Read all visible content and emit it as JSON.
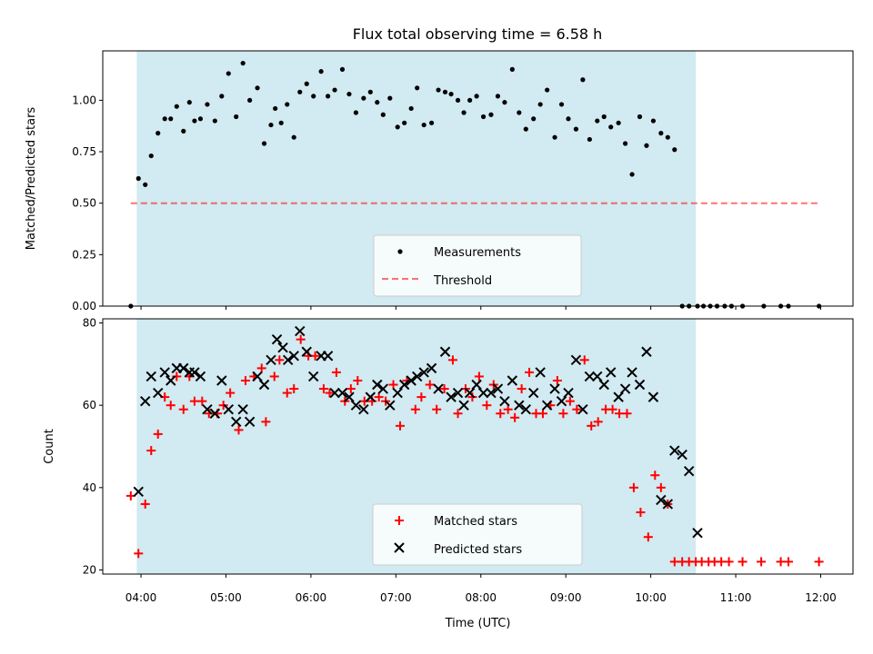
{
  "title": "Flux total observing time = 6.58 h",
  "colors": {
    "shade": "#add8e6",
    "measurement": "#000000",
    "threshold": "#ff0000",
    "matched": "#ff0000",
    "predicted": "#000000"
  },
  "chart_data": [
    {
      "type": "scatter",
      "ylabel": "Matched/Predicted stars",
      "ylim": [
        0,
        1.24
      ],
      "yticks": [
        0.0,
        0.25,
        0.5,
        0.75,
        1.0
      ],
      "ytick_labels": [
        "0.00",
        "0.25",
        "0.50",
        "0.75",
        "1.00"
      ],
      "shaded_span_hours": [
        3.95,
        10.53
      ],
      "threshold": {
        "name": "Threshold",
        "value": 0.5,
        "x_range_hours": [
          3.88,
          12.0
        ]
      },
      "legend": {
        "position": "lower-center",
        "entries": [
          "Measurements",
          "Threshold"
        ]
      },
      "series": [
        {
          "name": "Measurements",
          "x_hours": [
            3.88,
            3.97,
            4.05,
            4.12,
            4.2,
            4.28,
            4.35,
            4.42,
            4.5,
            4.57,
            4.63,
            4.7,
            4.78,
            4.87,
            4.95,
            5.03,
            5.12,
            5.2,
            5.28,
            5.37,
            5.45,
            5.53,
            5.58,
            5.65,
            5.72,
            5.8,
            5.87,
            5.95,
            6.03,
            6.12,
            6.2,
            6.28,
            6.37,
            6.45,
            6.53,
            6.62,
            6.7,
            6.78,
            6.85,
            6.93,
            7.02,
            7.1,
            7.18,
            7.25,
            7.33,
            7.42,
            7.5,
            7.58,
            7.65,
            7.73,
            7.8,
            7.87,
            7.95,
            8.03,
            8.12,
            8.2,
            8.28,
            8.37,
            8.45,
            8.53,
            8.62,
            8.7,
            8.78,
            8.87,
            8.95,
            9.03,
            9.12,
            9.2,
            9.28,
            9.37,
            9.45,
            9.53,
            9.62,
            9.7,
            9.78,
            9.87,
            9.95,
            10.03,
            10.12,
            10.2,
            10.28,
            10.37,
            10.45,
            10.55,
            10.62,
            10.7,
            10.78,
            10.87,
            10.95,
            11.08,
            11.33,
            11.53,
            11.62,
            11.98
          ],
          "y": [
            0.0,
            0.62,
            0.59,
            0.73,
            0.84,
            0.91,
            0.91,
            0.97,
            0.85,
            0.99,
            0.9,
            0.91,
            0.98,
            0.9,
            1.02,
            1.13,
            0.92,
            1.18,
            1.0,
            1.06,
            0.79,
            0.88,
            0.96,
            0.89,
            0.98,
            0.82,
            1.04,
            1.08,
            1.02,
            1.14,
            1.02,
            1.05,
            1.15,
            1.03,
            0.94,
            1.01,
            1.04,
            0.99,
            0.93,
            1.01,
            0.87,
            0.89,
            0.96,
            1.06,
            0.88,
            0.89,
            1.05,
            1.04,
            1.03,
            1.0,
            0.94,
            1.0,
            1.02,
            0.92,
            0.93,
            1.02,
            0.99,
            1.15,
            0.94,
            0.86,
            0.91,
            0.98,
            1.05,
            0.82,
            0.98,
            0.91,
            0.86,
            1.1,
            0.81,
            0.9,
            0.92,
            0.87,
            0.89,
            0.79,
            0.64,
            0.92,
            0.78,
            0.9,
            0.84,
            0.82,
            0.76,
            0.0,
            0.0,
            0.0,
            0.0,
            0.0,
            0.0,
            0.0,
            0.0,
            0.0,
            0.0,
            0.0,
            0.0,
            0.0
          ]
        }
      ]
    },
    {
      "type": "scatter",
      "ylabel": "Count",
      "xlabel": "Time (UTC)",
      "ylim": [
        19,
        81
      ],
      "yticks": [
        20,
        40,
        60,
        80
      ],
      "ytick_labels": [
        "20",
        "40",
        "60",
        "80"
      ],
      "xticks_hours": [
        4,
        5,
        6,
        7,
        8,
        9,
        10,
        11,
        12
      ],
      "xtick_labels": [
        "04:00",
        "05:00",
        "06:00",
        "07:00",
        "08:00",
        "09:00",
        "10:00",
        "11:00",
        "12:00"
      ],
      "xlim_hours": [
        3.55,
        12.38
      ],
      "shaded_span_hours": [
        3.95,
        10.53
      ],
      "legend": {
        "position": "lower-center",
        "entries": [
          "Matched stars",
          "Predicted stars"
        ]
      },
      "series": [
        {
          "name": "Matched stars",
          "x_hours": [
            3.88,
            3.97,
            4.05,
            4.12,
            4.2,
            4.28,
            4.35,
            4.42,
            4.5,
            4.57,
            4.63,
            4.7,
            4.78,
            4.87,
            4.95,
            5.03,
            5.12,
            5.2,
            5.28,
            5.37,
            5.45,
            5.53,
            5.58,
            5.65,
            5.72,
            5.8,
            5.87,
            5.95,
            6.03,
            6.12,
            6.2,
            6.28,
            6.37,
            6.45,
            6.53,
            6.62,
            6.7,
            6.78,
            6.85,
            6.93,
            7.02,
            7.1,
            7.18,
            7.25,
            7.33,
            7.42,
            7.5,
            7.58,
            7.65,
            7.73,
            7.8,
            7.87,
            7.95,
            8.03,
            8.12,
            8.2,
            8.28,
            8.37,
            8.45,
            8.53,
            8.62,
            8.7,
            8.78,
            8.87,
            8.95,
            9.03,
            9.12,
            9.2,
            9.28,
            9.37,
            9.45,
            9.53,
            9.62,
            9.7,
            9.78,
            9.87,
            9.95,
            10.03,
            10.12,
            10.2,
            10.28,
            10.37,
            10.45,
            10.55,
            10.62,
            10.7,
            10.78,
            10.87,
            10.95,
            11.08,
            11.33,
            11.53,
            11.62,
            11.98
          ],
          "y": [
            38,
            24,
            36,
            49,
            53,
            62,
            60,
            67,
            59,
            67,
            61,
            61,
            58,
            58,
            60,
            63,
            54,
            66,
            67,
            69,
            56,
            67,
            71,
            63,
            64,
            76,
            72,
            72,
            64,
            63,
            68,
            61,
            64,
            66,
            61,
            61,
            62,
            61,
            65,
            55,
            66,
            59,
            62,
            65,
            59,
            64,
            71,
            58,
            64,
            62,
            67,
            60,
            65,
            58,
            59,
            57,
            64,
            68,
            58,
            58,
            60,
            66,
            58,
            61,
            59,
            71,
            55,
            56,
            59,
            59,
            58,
            58,
            40,
            34,
            28,
            43,
            40,
            36,
            22,
            22,
            22,
            22,
            22,
            22,
            22,
            22,
            22,
            22,
            22,
            22,
            22,
            22,
            22,
            22
          ],
          "x_plus": [
            3.88,
            3.97,
            4.05,
            4.12,
            4.2,
            4.28,
            4.35,
            4.42,
            4.5,
            4.57,
            4.63,
            4.72,
            4.8,
            4.9,
            4.97,
            5.05,
            5.15,
            5.23,
            5.33,
            5.42,
            5.47,
            5.57,
            5.63,
            5.72,
            5.8,
            5.88,
            5.97,
            6.05,
            6.15,
            6.22,
            6.3,
            6.4,
            6.47,
            6.55,
            6.63,
            6.72,
            6.8,
            6.88,
            6.97,
            7.05,
            7.13,
            7.23,
            7.3,
            7.4,
            7.48,
            7.57,
            7.67,
            7.73,
            7.82,
            7.9,
            7.98,
            8.07,
            8.15,
            8.23,
            8.32,
            8.4,
            8.48,
            8.57,
            8.65,
            8.73,
            8.82,
            8.9,
            8.97,
            9.05,
            9.13,
            9.22,
            9.3,
            9.38,
            9.47,
            9.55,
            9.63,
            9.72,
            9.8,
            9.88,
            9.97,
            10.05,
            10.12,
            10.2,
            10.28,
            10.37,
            10.45,
            10.53,
            10.6,
            10.68,
            10.75,
            10.83,
            10.92,
            11.08,
            11.3,
            11.53,
            11.62,
            11.98
          ]
        },
        {
          "name": "Predicted stars",
          "x_hours": [
            3.97,
            4.05,
            4.12,
            4.2,
            4.28,
            4.35,
            4.42,
            4.5,
            4.57,
            4.63,
            4.7,
            4.78,
            4.87,
            4.95,
            5.03,
            5.12,
            5.2,
            5.28,
            5.37,
            5.45,
            5.53,
            5.6,
            5.67,
            5.73,
            5.8,
            5.87,
            5.95,
            6.03,
            6.12,
            6.2,
            6.28,
            6.37,
            6.45,
            6.53,
            6.62,
            6.7,
            6.78,
            6.85,
            6.93,
            7.02,
            7.1,
            7.18,
            7.25,
            7.33,
            7.42,
            7.5,
            7.58,
            7.65,
            7.73,
            7.8,
            7.87,
            7.95,
            8.03,
            8.12,
            8.2,
            8.28,
            8.37,
            8.45,
            8.53,
            8.62,
            8.7,
            8.78,
            8.87,
            8.95,
            9.03,
            9.12,
            9.2,
            9.28,
            9.37,
            9.45,
            9.53,
            9.62,
            9.7,
            9.78,
            9.87,
            9.95,
            10.03,
            10.12,
            10.2,
            10.28,
            10.37,
            10.45,
            10.55
          ],
          "y": [
            39,
            61,
            67,
            63,
            68,
            66,
            69,
            69,
            68,
            68,
            67,
            59,
            58,
            66,
            59,
            56,
            59,
            56,
            67,
            65,
            71,
            76,
            74,
            71,
            72,
            78,
            73,
            67,
            72,
            72,
            63,
            63,
            62,
            60,
            59,
            62,
            65,
            64,
            60,
            63,
            65,
            66,
            67,
            68,
            69,
            64,
            73,
            62,
            63,
            60,
            63,
            65,
            63,
            63,
            64,
            61,
            66,
            60,
            59,
            63,
            68,
            60,
            64,
            61,
            63,
            71,
            59,
            67,
            67,
            65,
            68,
            62,
            64,
            68,
            65,
            73,
            62,
            37,
            36,
            49,
            48,
            44,
            29
          ]
        }
      ]
    }
  ]
}
